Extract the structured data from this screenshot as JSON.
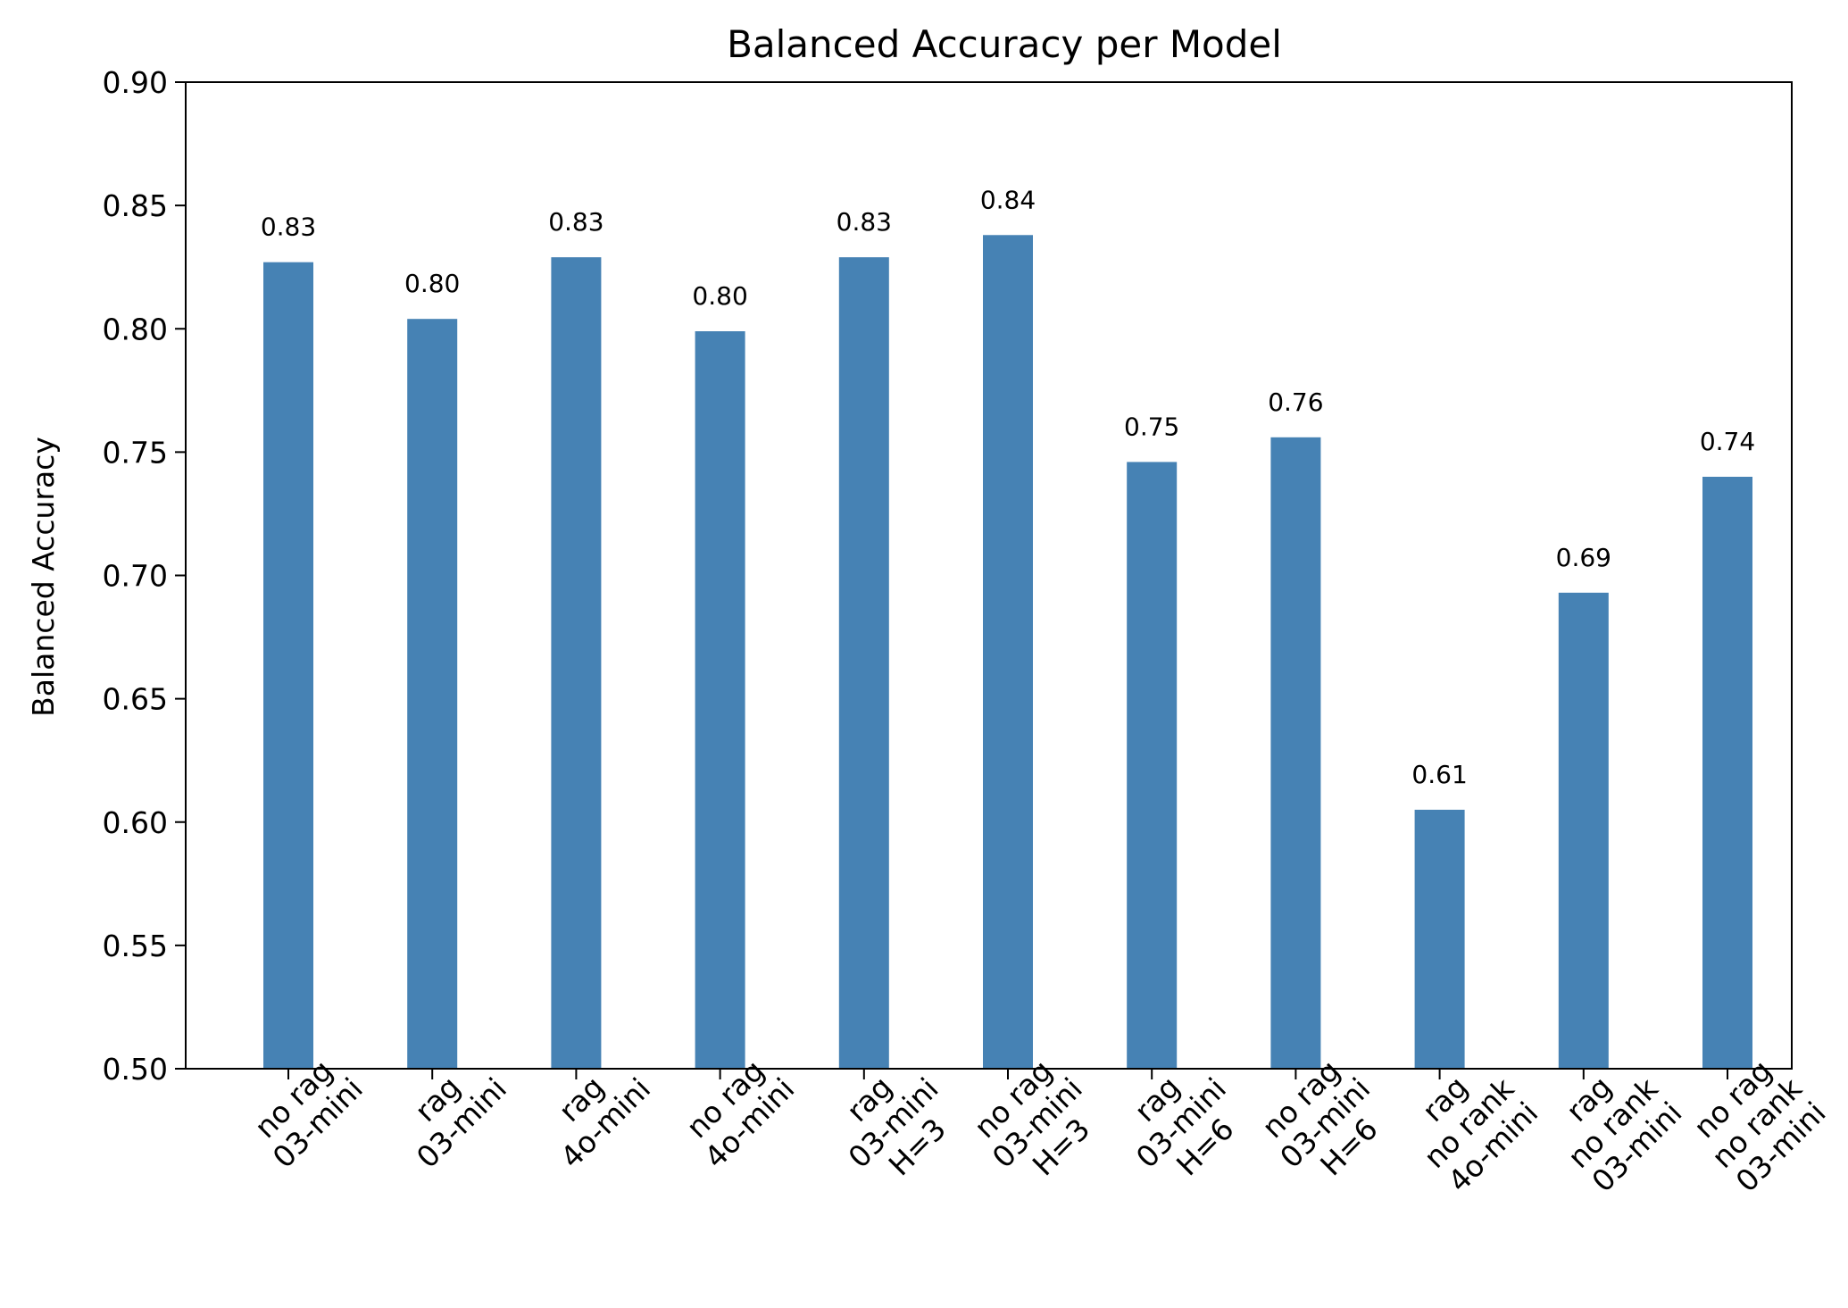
{
  "chart_data": {
    "type": "bar",
    "title": "Balanced Accuracy per Model",
    "xlabel": "",
    "ylabel": "Balanced Accuracy",
    "ylim": [
      0.5,
      0.9
    ],
    "yticks": [
      "0.50",
      "0.55",
      "0.60",
      "0.65",
      "0.70",
      "0.75",
      "0.80",
      "0.85",
      "0.90"
    ],
    "categories": [
      [
        "no rag",
        "03-mini"
      ],
      [
        "rag",
        "03-mini"
      ],
      [
        "rag",
        "4o-mini"
      ],
      [
        "no rag",
        "4o-mini"
      ],
      [
        "rag",
        "03-mini",
        "H=3"
      ],
      [
        "no rag",
        "03-mini",
        "H=3"
      ],
      [
        "rag",
        "03-mini",
        "H=6"
      ],
      [
        "no rag",
        "03-mini",
        "H=6"
      ],
      [
        "rag",
        "no rank",
        "4o-mini"
      ],
      [
        "rag",
        "no rank",
        "03-mini"
      ],
      [
        "no rag",
        "no rank",
        "03-mini"
      ]
    ],
    "values": [
      0.827,
      0.804,
      0.829,
      0.799,
      0.829,
      0.838,
      0.746,
      0.756,
      0.605,
      0.693,
      0.74
    ],
    "data_labels": [
      "0.83",
      "0.80",
      "0.83",
      "0.80",
      "0.83",
      "0.84",
      "0.75",
      "0.76",
      "0.61",
      "0.69",
      "0.74"
    ],
    "bar_color": "#4682b4",
    "grid": false,
    "legend": null
  }
}
